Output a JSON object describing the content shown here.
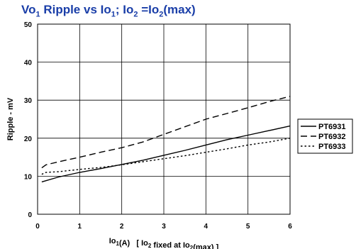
{
  "chart_data": {
    "type": "line",
    "title": {
      "parts": [
        {
          "text": "Vo",
          "sub": "1"
        },
        {
          "text": " Ripple vs Io",
          "sub": "1"
        },
        {
          "text": "; Io",
          "sub": "2"
        },
        {
          "text": " =Io",
          "sub": "2"
        },
        {
          "text": "(max)",
          "sub": ""
        }
      ]
    },
    "xlabel": {
      "parts": [
        {
          "text": "Io",
          "sub": "1"
        },
        {
          "text": "(A)   [ Io",
          "sub": "2"
        },
        {
          "text": " fixed at Io",
          "sub": "2"
        },
        {
          "text": "(max) ]",
          "sub": ""
        }
      ]
    },
    "ylabel": "Ripple - mV",
    "xlim": [
      0,
      6
    ],
    "ylim": [
      0,
      50
    ],
    "xticks": [
      "0",
      "1",
      "2",
      "3",
      "4",
      "5",
      "6"
    ],
    "yticks": [
      "0",
      "10",
      "20",
      "30",
      "40",
      "50"
    ],
    "grid": true,
    "legend_position": "right",
    "series": [
      {
        "name": "PT6931",
        "style": "solid",
        "x": [
          0.1,
          0.5,
          1,
          1.5,
          2,
          2.5,
          3,
          3.5,
          4,
          4.5,
          5,
          5.5,
          6
        ],
        "y": [
          8.5,
          9.8,
          11,
          12,
          13.1,
          14.2,
          15.5,
          16.8,
          18.2,
          19.6,
          20.8,
          22,
          23.2
        ]
      },
      {
        "name": "PT6932",
        "style": "dashed",
        "x": [
          0.1,
          0.2,
          0.5,
          1,
          1.5,
          2,
          2.5,
          3,
          3.5,
          4,
          4.5,
          5,
          5.5,
          6
        ],
        "y": [
          12.2,
          13,
          13.8,
          15,
          16.3,
          17.5,
          19,
          21,
          23,
          25,
          26.5,
          28,
          29.6,
          31
        ]
      },
      {
        "name": "PT6933",
        "style": "dotted",
        "x": [
          0.1,
          0.2,
          0.5,
          1,
          1.5,
          2,
          2.5,
          3,
          3.5,
          4,
          4.5,
          5,
          5.5,
          6
        ],
        "y": [
          10.5,
          11,
          11.2,
          11.8,
          12.3,
          13,
          13.8,
          14.6,
          15.4,
          16.3,
          17.2,
          18.2,
          19,
          20
        ]
      }
    ]
  }
}
